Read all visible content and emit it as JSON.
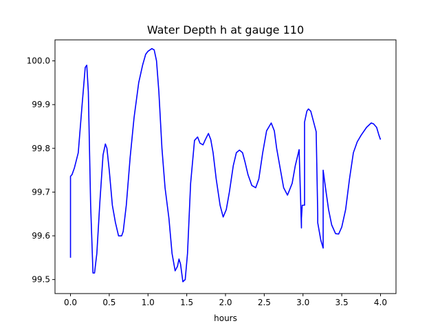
{
  "chart_data": {
    "type": "line",
    "title": "Water Depth h at gauge 110",
    "xlabel": "hours",
    "ylabel": "",
    "xlim": [
      -0.2,
      4.2
    ],
    "ylim": [
      99.468,
      100.048
    ],
    "xticks": [
      0.0,
      0.5,
      1.0,
      1.5,
      2.0,
      2.5,
      3.0,
      3.5,
      4.0
    ],
    "xtick_labels": [
      "0.0",
      "0.5",
      "1.0",
      "1.5",
      "2.0",
      "2.5",
      "3.0",
      "3.5",
      "4.0"
    ],
    "yticks": [
      99.5,
      99.6,
      99.7,
      99.8,
      99.9,
      100.0
    ],
    "ytick_labels": [
      "99.5",
      "99.6",
      "99.7",
      "99.8",
      "99.9",
      "100.0"
    ],
    "grid": false,
    "legend": "none",
    "series": [
      {
        "color": "#0000ff",
        "x": [
          0.0,
          0.0,
          0.02,
          0.05,
          0.1,
          0.15,
          0.19,
          0.21,
          0.23,
          0.26,
          0.29,
          0.31,
          0.34,
          0.38,
          0.42,
          0.45,
          0.47,
          0.5,
          0.54,
          0.58,
          0.62,
          0.66,
          0.68,
          0.72,
          0.77,
          0.82,
          0.88,
          0.93,
          0.97,
          1.0,
          1.05,
          1.08,
          1.11,
          1.14,
          1.18,
          1.22,
          1.27,
          1.31,
          1.35,
          1.38,
          1.4,
          1.42,
          1.45,
          1.48,
          1.51,
          1.55,
          1.6,
          1.64,
          1.67,
          1.71,
          1.74,
          1.78,
          1.81,
          1.84,
          1.88,
          1.93,
          1.97,
          2.01,
          2.05,
          2.1,
          2.14,
          2.18,
          2.22,
          2.25,
          2.29,
          2.34,
          2.39,
          2.43,
          2.48,
          2.53,
          2.59,
          2.63,
          2.66,
          2.7,
          2.75,
          2.8,
          2.86,
          2.9,
          2.95,
          2.98,
          2.98,
          2.99,
          3.02,
          3.02,
          3.05,
          3.07,
          3.1,
          3.13,
          3.17,
          3.19,
          3.19,
          3.23,
          3.26,
          3.26,
          3.29,
          3.33,
          3.37,
          3.42,
          3.46,
          3.5,
          3.55,
          3.6,
          3.65,
          3.7,
          3.75,
          3.82,
          3.88,
          3.91,
          3.95,
          3.98,
          4.0
        ],
        "y": [
          99.55,
          99.736,
          99.74,
          99.755,
          99.79,
          99.9,
          99.985,
          99.99,
          99.93,
          99.67,
          99.515,
          99.515,
          99.56,
          99.68,
          99.785,
          99.81,
          99.8,
          99.75,
          99.67,
          99.63,
          99.6,
          99.6,
          99.61,
          99.67,
          99.78,
          99.87,
          99.95,
          99.99,
          100.015,
          100.022,
          100.028,
          100.025,
          100.0,
          99.93,
          99.8,
          99.71,
          99.64,
          99.56,
          99.52,
          99.53,
          99.547,
          99.535,
          99.495,
          99.5,
          99.56,
          99.72,
          99.818,
          99.826,
          99.812,
          99.808,
          99.82,
          99.834,
          99.82,
          99.79,
          99.73,
          99.67,
          99.643,
          99.66,
          99.7,
          99.76,
          99.79,
          99.796,
          99.79,
          99.77,
          99.74,
          99.715,
          99.71,
          99.73,
          99.79,
          99.84,
          99.858,
          99.84,
          99.8,
          99.76,
          99.71,
          99.693,
          99.72,
          99.76,
          99.797,
          99.618,
          99.64,
          99.67,
          99.67,
          99.86,
          99.885,
          99.89,
          99.885,
          99.865,
          99.838,
          99.65,
          99.63,
          99.59,
          99.572,
          99.75,
          99.71,
          99.66,
          99.625,
          99.605,
          99.604,
          99.62,
          99.66,
          99.73,
          99.79,
          99.815,
          99.83,
          99.848,
          99.858,
          99.856,
          99.848,
          99.83,
          99.82
        ]
      }
    ]
  }
}
